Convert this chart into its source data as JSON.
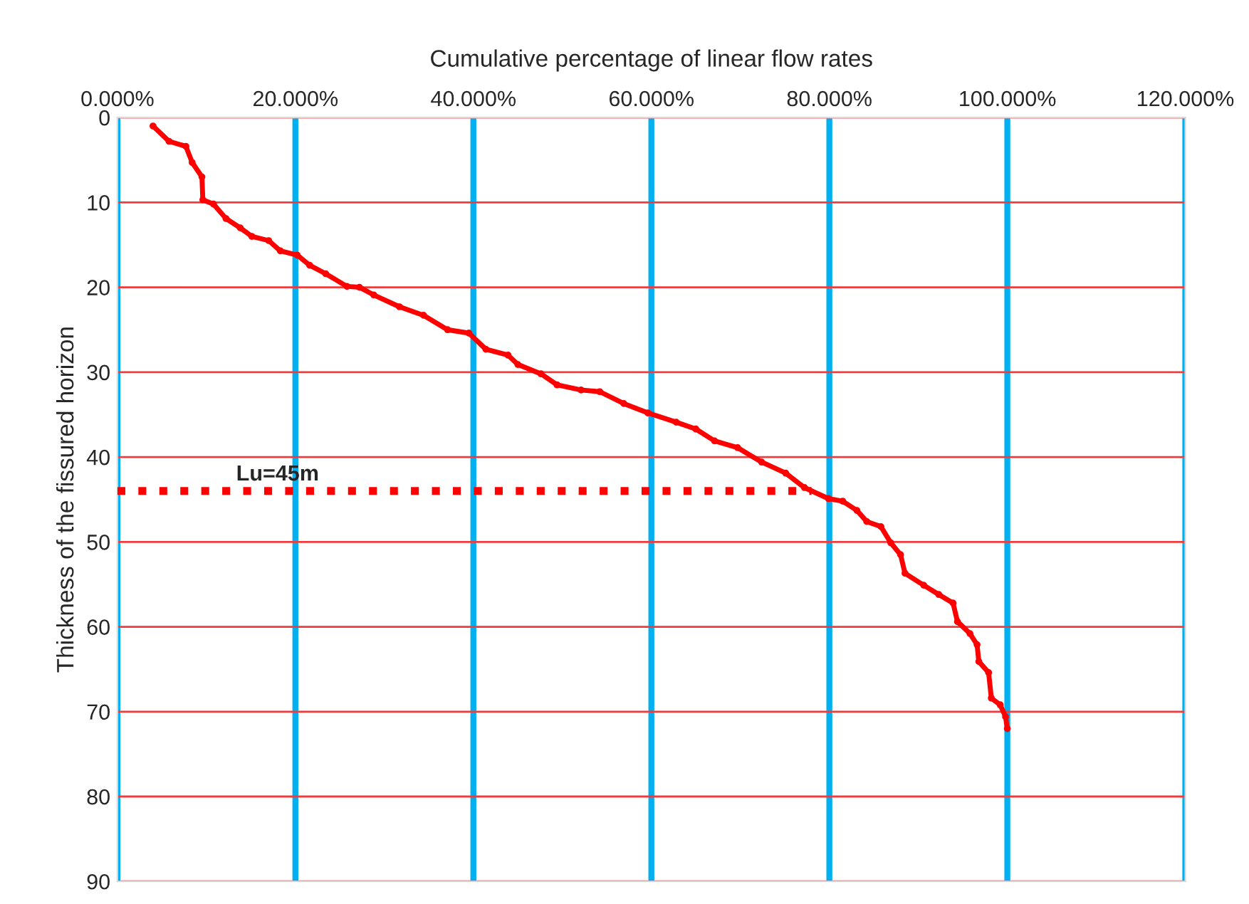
{
  "chart_data": {
    "type": "line",
    "xlabel": "Cumulative percentage of linear flow rates",
    "ylabel": "Thickness of the fissured horizon",
    "xlim": [
      0,
      120
    ],
    "ylim": [
      90,
      0
    ],
    "xticks": [
      {
        "value": 0,
        "label": "0.000%"
      },
      {
        "value": 20,
        "label": "20.000%"
      },
      {
        "value": 40,
        "label": "40.000%"
      },
      {
        "value": 60,
        "label": "60.000%"
      },
      {
        "value": 80,
        "label": "80.000%"
      },
      {
        "value": 100,
        "label": "100.000%"
      },
      {
        "value": 120,
        "label": "120.000%"
      }
    ],
    "yticks": [
      0,
      10,
      20,
      30,
      40,
      50,
      60,
      70,
      80,
      90
    ],
    "grid": true,
    "series": [
      {
        "color": "#ff0000",
        "marker": "circle",
        "line_style": "solid",
        "x": [
          4.0,
          5.8,
          7.7,
          8.4,
          9.5,
          9.6,
          10.8,
          12.2,
          13.8,
          15.1,
          17.0,
          18.3,
          20.2,
          21.6,
          23.4,
          25.8,
          27.2,
          28.8,
          31.7,
          34.4,
          37.1,
          39.5,
          41.4,
          43.9,
          45.0,
          47.6,
          49.4,
          52.1,
          54.2,
          56.9,
          59.6,
          62.8,
          65.0,
          67.1,
          69.7,
          72.4,
          75.1,
          77.2,
          79.9,
          81.5,
          83.1,
          84.2,
          85.8,
          86.9,
          88.0,
          88.5,
          90.6,
          92.3,
          93.9,
          94.4,
          95.8,
          96.6,
          96.8,
          97.9,
          98.2,
          99.2,
          99.8,
          100.0
        ],
        "values": [
          1.0,
          2.8,
          3.4,
          5.3,
          7.0,
          9.7,
          10.2,
          11.9,
          13.0,
          14.0,
          14.5,
          15.7,
          16.2,
          17.4,
          18.4,
          19.9,
          20.0,
          20.9,
          22.3,
          23.3,
          25.0,
          25.4,
          27.3,
          28.0,
          29.1,
          30.2,
          31.5,
          32.1,
          32.3,
          33.7,
          34.8,
          35.9,
          36.7,
          38.1,
          38.9,
          40.6,
          41.9,
          43.6,
          44.9,
          45.2,
          46.3,
          47.6,
          48.2,
          50.1,
          51.5,
          53.7,
          55.1,
          56.2,
          57.2,
          59.4,
          60.8,
          62.1,
          64.1,
          65.4,
          68.4,
          69.2,
          70.6,
          72.0
        ]
      },
      {
        "color": "#ff0000",
        "marker": "none",
        "line_style": "dotted",
        "x": [
          0,
          78
        ],
        "values": [
          44,
          44
        ]
      }
    ],
    "annotations": [
      {
        "text": "Lu=45m",
        "x": 18,
        "y": 44
      }
    ]
  }
}
